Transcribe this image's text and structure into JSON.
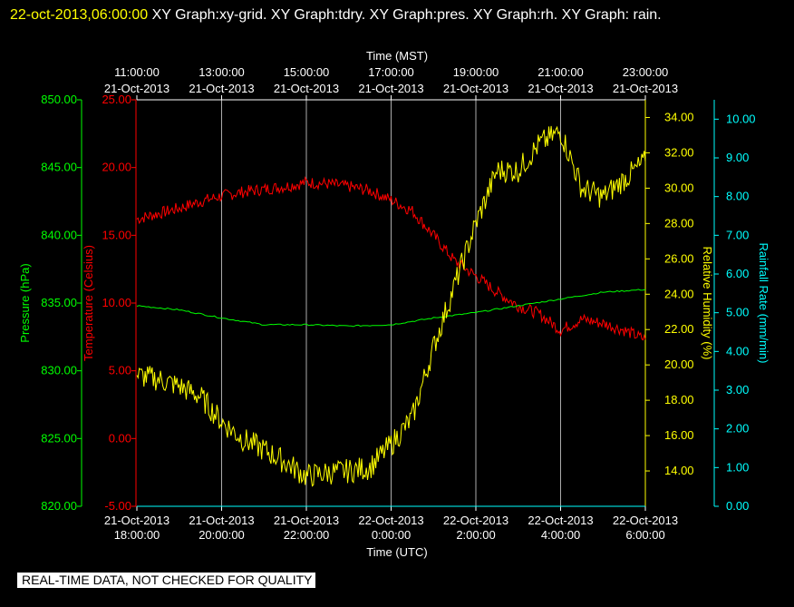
{
  "header": {
    "timestamp": "22-oct-2013,06:00:00",
    "description": "XY Graph:xy-grid.  XY Graph:tdry.  XY Graph:pres.  XY Graph:rh.  XY Graph: rain."
  },
  "quality_notice": "REAL-TIME DATA, NOT CHECKED FOR QUALITY",
  "colors": {
    "background": "#000000",
    "grid": "#ffffff",
    "pressure": "#00ff00",
    "temperature": "#ff0000",
    "humidity": "#ffff00",
    "rainfall": "#00ffff",
    "timestamp": "#ffff00"
  },
  "chart_data": {
    "type": "line",
    "grid": true,
    "x_top": {
      "label": "Time (MST)",
      "ticks": [
        {
          "time": "11:00:00",
          "date": "21-Oct-2013"
        },
        {
          "time": "13:00:00",
          "date": "21-Oct-2013"
        },
        {
          "time": "15:00:00",
          "date": "21-Oct-2013"
        },
        {
          "time": "17:00:00",
          "date": "21-Oct-2013"
        },
        {
          "time": "19:00:00",
          "date": "21-Oct-2013"
        },
        {
          "time": "21:00:00",
          "date": "21-Oct-2013"
        },
        {
          "time": "23:00:00",
          "date": "21-Oct-2013"
        }
      ]
    },
    "x_bottom": {
      "label": "Time (UTC)",
      "range": [
        "2013-10-21 18:00",
        "2013-10-22 06:00"
      ],
      "ticks": [
        {
          "date": "21-Oct-2013",
          "time": "18:00:00"
        },
        {
          "date": "21-Oct-2013",
          "time": "20:00:00"
        },
        {
          "date": "21-Oct-2013",
          "time": "22:00:00"
        },
        {
          "date": "22-Oct-2013",
          "time": "0:00:00"
        },
        {
          "date": "22-Oct-2013",
          "time": "2:00:00"
        },
        {
          "date": "22-Oct-2013",
          "time": "4:00:00"
        },
        {
          "date": "22-Oct-2013",
          "time": "6:00:00"
        }
      ]
    },
    "axes": {
      "pressure": {
        "label": "Pressure (hPa)",
        "range": [
          820,
          850
        ],
        "ticks": [
          "820.00",
          "825.00",
          "830.00",
          "835.00",
          "840.00",
          "845.00",
          "850.00"
        ]
      },
      "temperature": {
        "label": "Temperature (Celsius)",
        "range": [
          -5,
          25
        ],
        "ticks": [
          "-5.00",
          "0.00",
          "5.00",
          "10.00",
          "15.00",
          "20.00",
          "25.00"
        ]
      },
      "humidity": {
        "label": "Relative Humidity (%)",
        "range": [
          12,
          35
        ],
        "ticks": [
          "14.00",
          "16.00",
          "18.00",
          "20.00",
          "22.00",
          "24.00",
          "26.00",
          "28.00",
          "30.00",
          "32.00",
          "34.00"
        ]
      },
      "rainfall": {
        "label": "Rainfall Rate (mm/min)",
        "range": [
          0,
          10.5
        ],
        "ticks": [
          "0.00",
          "1.00",
          "2.00",
          "3.00",
          "4.00",
          "5.00",
          "6.00",
          "7.00",
          "8.00",
          "9.00",
          "10.00"
        ]
      }
    },
    "series": [
      {
        "key": "temperature",
        "name": "Temperature (Celsius)",
        "x": [
          "2013-10-21 18:00",
          "2013-10-21 18:30",
          "2013-10-21 19:00",
          "2013-10-21 19:30",
          "2013-10-21 20:00",
          "2013-10-21 20:30",
          "2013-10-21 21:00",
          "2013-10-21 21:30",
          "2013-10-21 22:00",
          "2013-10-21 22:30",
          "2013-10-21 23:00",
          "2013-10-21 23:30",
          "2013-10-22 00:00",
          "2013-10-22 00:30",
          "2013-10-22 01:00",
          "2013-10-22 01:30",
          "2013-10-22 02:00",
          "2013-10-22 02:30",
          "2013-10-22 03:00",
          "2013-10-22 03:30",
          "2013-10-22 04:00",
          "2013-10-22 04:30",
          "2013-10-22 05:00",
          "2013-10-22 05:30",
          "2013-10-22 06:00"
        ],
        "values": [
          16.2,
          16.6,
          17.0,
          17.5,
          17.9,
          18.2,
          18.4,
          18.6,
          18.9,
          18.8,
          18.6,
          18.3,
          17.6,
          16.8,
          15.0,
          13.1,
          12.0,
          10.8,
          9.8,
          9.2,
          8.0,
          8.8,
          8.5,
          8.0,
          7.3
        ]
      },
      {
        "key": "pressure",
        "name": "Pressure (hPa)",
        "x": [
          "2013-10-21 18:00",
          "2013-10-21 19:00",
          "2013-10-21 20:00",
          "2013-10-21 21:00",
          "2013-10-21 22:00",
          "2013-10-21 23:00",
          "2013-10-22 00:00",
          "2013-10-22 01:00",
          "2013-10-22 02:00",
          "2013-10-22 03:00",
          "2013-10-22 04:00",
          "2013-10-22 05:00",
          "2013-10-22 06:00"
        ],
        "values": [
          834.8,
          834.5,
          833.9,
          833.4,
          833.4,
          833.3,
          833.4,
          833.9,
          834.3,
          834.8,
          835.3,
          835.8,
          836.0
        ]
      },
      {
        "key": "humidity",
        "name": "Relative Humidity (%)",
        "x": [
          "2013-10-21 18:00",
          "2013-10-21 18:30",
          "2013-10-21 19:00",
          "2013-10-21 19:30",
          "2013-10-21 20:00",
          "2013-10-21 20:30",
          "2013-10-21 21:00",
          "2013-10-21 21:30",
          "2013-10-21 22:00",
          "2013-10-21 22:30",
          "2013-10-21 23:00",
          "2013-10-21 23:30",
          "2013-10-22 00:00",
          "2013-10-22 00:30",
          "2013-10-22 01:00",
          "2013-10-22 01:30",
          "2013-10-22 02:00",
          "2013-10-22 02:30",
          "2013-10-22 03:00",
          "2013-10-22 03:30",
          "2013-10-22 04:00",
          "2013-10-22 04:30",
          "2013-10-22 05:00",
          "2013-10-22 05:30",
          "2013-10-22 06:00"
        ],
        "values": [
          19.4,
          19.2,
          18.8,
          18.2,
          16.8,
          15.8,
          15.2,
          14.5,
          13.7,
          13.9,
          14.0,
          14.2,
          15.5,
          17.0,
          21.0,
          24.5,
          28.0,
          31.0,
          31.0,
          32.5,
          33.2,
          30.0,
          29.5,
          30.5,
          31.5
        ]
      },
      {
        "key": "rainfall",
        "name": "Rainfall Rate (mm/min)",
        "x": [
          "2013-10-21 18:00",
          "2013-10-22 06:00"
        ],
        "values": [
          0.0,
          0.0
        ]
      }
    ]
  }
}
